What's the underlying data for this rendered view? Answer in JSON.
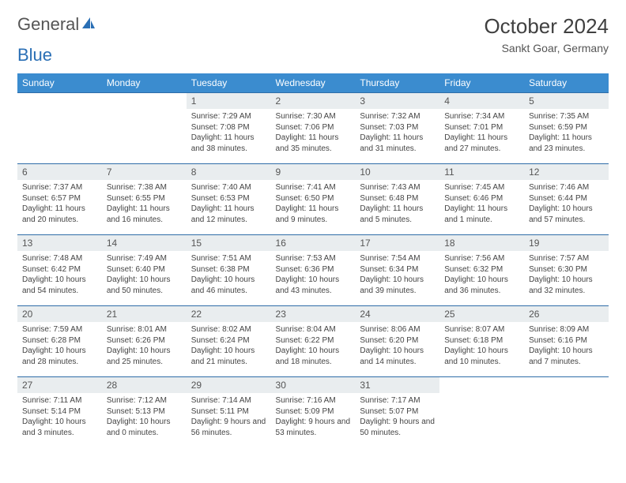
{
  "logo": {
    "part1": "General",
    "part2": "Blue"
  },
  "title": "October 2024",
  "location": "Sankt Goar, Germany",
  "colors": {
    "header_bg": "#3b8ccf",
    "header_text": "#ffffff",
    "daynum_bg": "#e9edef",
    "border": "#2f6da8",
    "logo_blue": "#2a6fb5"
  },
  "weekdays": [
    "Sunday",
    "Monday",
    "Tuesday",
    "Wednesday",
    "Thursday",
    "Friday",
    "Saturday"
  ],
  "weeks": [
    [
      null,
      null,
      {
        "n": "1",
        "sr": "7:29 AM",
        "ss": "7:08 PM",
        "dl": "11 hours and 38 minutes."
      },
      {
        "n": "2",
        "sr": "7:30 AM",
        "ss": "7:06 PM",
        "dl": "11 hours and 35 minutes."
      },
      {
        "n": "3",
        "sr": "7:32 AM",
        "ss": "7:03 PM",
        "dl": "11 hours and 31 minutes."
      },
      {
        "n": "4",
        "sr": "7:34 AM",
        "ss": "7:01 PM",
        "dl": "11 hours and 27 minutes."
      },
      {
        "n": "5",
        "sr": "7:35 AM",
        "ss": "6:59 PM",
        "dl": "11 hours and 23 minutes."
      }
    ],
    [
      {
        "n": "6",
        "sr": "7:37 AM",
        "ss": "6:57 PM",
        "dl": "11 hours and 20 minutes."
      },
      {
        "n": "7",
        "sr": "7:38 AM",
        "ss": "6:55 PM",
        "dl": "11 hours and 16 minutes."
      },
      {
        "n": "8",
        "sr": "7:40 AM",
        "ss": "6:53 PM",
        "dl": "11 hours and 12 minutes."
      },
      {
        "n": "9",
        "sr": "7:41 AM",
        "ss": "6:50 PM",
        "dl": "11 hours and 9 minutes."
      },
      {
        "n": "10",
        "sr": "7:43 AM",
        "ss": "6:48 PM",
        "dl": "11 hours and 5 minutes."
      },
      {
        "n": "11",
        "sr": "7:45 AM",
        "ss": "6:46 PM",
        "dl": "11 hours and 1 minute."
      },
      {
        "n": "12",
        "sr": "7:46 AM",
        "ss": "6:44 PM",
        "dl": "10 hours and 57 minutes."
      }
    ],
    [
      {
        "n": "13",
        "sr": "7:48 AM",
        "ss": "6:42 PM",
        "dl": "10 hours and 54 minutes."
      },
      {
        "n": "14",
        "sr": "7:49 AM",
        "ss": "6:40 PM",
        "dl": "10 hours and 50 minutes."
      },
      {
        "n": "15",
        "sr": "7:51 AM",
        "ss": "6:38 PM",
        "dl": "10 hours and 46 minutes."
      },
      {
        "n": "16",
        "sr": "7:53 AM",
        "ss": "6:36 PM",
        "dl": "10 hours and 43 minutes."
      },
      {
        "n": "17",
        "sr": "7:54 AM",
        "ss": "6:34 PM",
        "dl": "10 hours and 39 minutes."
      },
      {
        "n": "18",
        "sr": "7:56 AM",
        "ss": "6:32 PM",
        "dl": "10 hours and 36 minutes."
      },
      {
        "n": "19",
        "sr": "7:57 AM",
        "ss": "6:30 PM",
        "dl": "10 hours and 32 minutes."
      }
    ],
    [
      {
        "n": "20",
        "sr": "7:59 AM",
        "ss": "6:28 PM",
        "dl": "10 hours and 28 minutes."
      },
      {
        "n": "21",
        "sr": "8:01 AM",
        "ss": "6:26 PM",
        "dl": "10 hours and 25 minutes."
      },
      {
        "n": "22",
        "sr": "8:02 AM",
        "ss": "6:24 PM",
        "dl": "10 hours and 21 minutes."
      },
      {
        "n": "23",
        "sr": "8:04 AM",
        "ss": "6:22 PM",
        "dl": "10 hours and 18 minutes."
      },
      {
        "n": "24",
        "sr": "8:06 AM",
        "ss": "6:20 PM",
        "dl": "10 hours and 14 minutes."
      },
      {
        "n": "25",
        "sr": "8:07 AM",
        "ss": "6:18 PM",
        "dl": "10 hours and 10 minutes."
      },
      {
        "n": "26",
        "sr": "8:09 AM",
        "ss": "6:16 PM",
        "dl": "10 hours and 7 minutes."
      }
    ],
    [
      {
        "n": "27",
        "sr": "7:11 AM",
        "ss": "5:14 PM",
        "dl": "10 hours and 3 minutes."
      },
      {
        "n": "28",
        "sr": "7:12 AM",
        "ss": "5:13 PM",
        "dl": "10 hours and 0 minutes."
      },
      {
        "n": "29",
        "sr": "7:14 AM",
        "ss": "5:11 PM",
        "dl": "9 hours and 56 minutes."
      },
      {
        "n": "30",
        "sr": "7:16 AM",
        "ss": "5:09 PM",
        "dl": "9 hours and 53 minutes."
      },
      {
        "n": "31",
        "sr": "7:17 AM",
        "ss": "5:07 PM",
        "dl": "9 hours and 50 minutes."
      },
      null,
      null
    ]
  ],
  "labels": {
    "sunrise": "Sunrise: ",
    "sunset": "Sunset: ",
    "daylight": "Daylight: "
  }
}
